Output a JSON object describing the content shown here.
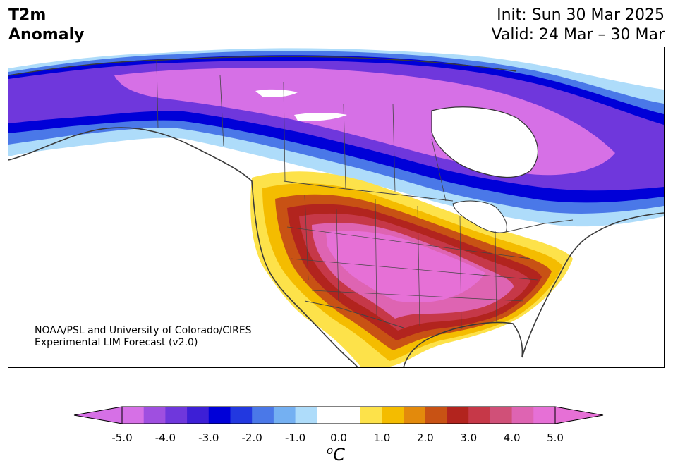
{
  "header": {
    "title_line1": "T2m",
    "title_line2": "Anomaly",
    "init": "Init: Sun 30 Mar 2025",
    "valid": "Valid: 24 Mar – 30 Mar"
  },
  "credit": {
    "line1": "NOAA/PSL and University of Colorado/CIRES",
    "line2": "Experimental LIM Forecast (v2.0)"
  },
  "colorbar": {
    "unit_base": "C",
    "unit_sup": "o",
    "ticks": [
      "-5.0",
      "-4.0",
      "-3.0",
      "-2.0",
      "-1.0",
      "0.0",
      "1.0",
      "2.0",
      "3.0",
      "4.0",
      "5.0"
    ],
    "min": -5.0,
    "max": 5.0,
    "step": 0.5,
    "colors": [
      "#d670e6",
      "#9f4fe0",
      "#6f37dc",
      "#3d1fd6",
      "#0000d8",
      "#2238e0",
      "#4a78e8",
      "#74b0f2",
      "#aedcfa",
      "#ffffff",
      "#ffffff",
      "#fde24a",
      "#f4bc00",
      "#e38a0c",
      "#c85214",
      "#b2241e",
      "#c63848",
      "#d05078",
      "#de64b2",
      "#e670d6"
    ],
    "extend_low_color": "#d670e6",
    "extend_high_color": "#e670d6"
  },
  "map": {
    "region": "North America",
    "variable": "2 m temperature anomaly"
  }
}
